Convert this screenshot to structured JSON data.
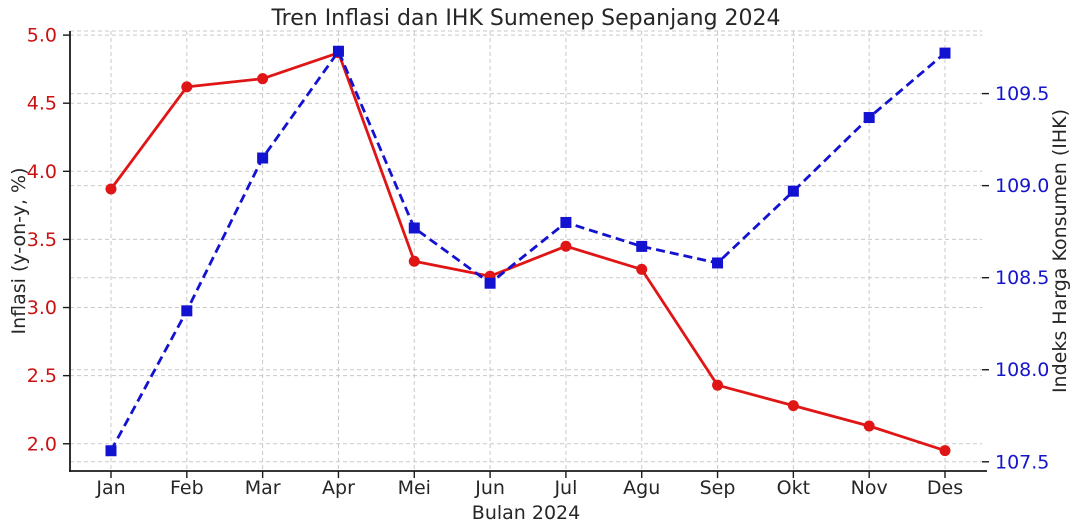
{
  "figure": {
    "background": "#ffffff"
  },
  "chart_data": {
    "type": "line",
    "title": "Tren Inflasi dan IHK Sumenep Sepanjang 2024",
    "xlabel": "Bulan 2024",
    "ylabel_left": "Inflasi (y-on-y, %)",
    "ylabel_right": "Indeks Harga Konsumen (IHK)",
    "categories": [
      "Jan",
      "Feb",
      "Mar",
      "Apr",
      "Mei",
      "Jun",
      "Jul",
      "Agu",
      "Sep",
      "Okt",
      "Nov",
      "Des"
    ],
    "series": [
      {
        "name": "Inflasi (y-on-y, %)",
        "axis": "left",
        "line_style": "solid",
        "marker": "circle",
        "color": "#e01616",
        "values": [
          3.87,
          4.62,
          4.68,
          4.87,
          3.34,
          3.23,
          3.45,
          3.28,
          2.43,
          2.28,
          2.13,
          1.95
        ]
      },
      {
        "name": "Indeks Harga Konsumen (IHK)",
        "axis": "right",
        "line_style": "dashed",
        "marker": "square",
        "color": "#1212d0",
        "values": [
          107.56,
          108.32,
          109.15,
          109.73,
          108.77,
          108.47,
          108.8,
          108.67,
          108.58,
          108.97,
          109.37,
          109.72
        ]
      }
    ],
    "left_axis": {
      "ticks": [
        2.0,
        2.5,
        3.0,
        3.5,
        4.0,
        4.5,
        5.0
      ],
      "tick_labels": [
        "2.0",
        "2.5",
        "3.0",
        "3.5",
        "4.0",
        "4.5",
        "5.0"
      ],
      "range": [
        1.8,
        5.03
      ],
      "tick_color": "#cc1111"
    },
    "right_axis": {
      "ticks": [
        107.5,
        108.0,
        108.5,
        109.0,
        109.5
      ],
      "tick_labels": [
        "107.5",
        "108.0",
        "108.5",
        "109.0",
        "109.5"
      ],
      "range": [
        107.45,
        109.84
      ],
      "tick_color": "#1515cc"
    },
    "grid": true,
    "legend": "none",
    "colors": {
      "grid": "#c9c9c9",
      "spine": "#1a1a1a",
      "text": "#262626"
    }
  }
}
